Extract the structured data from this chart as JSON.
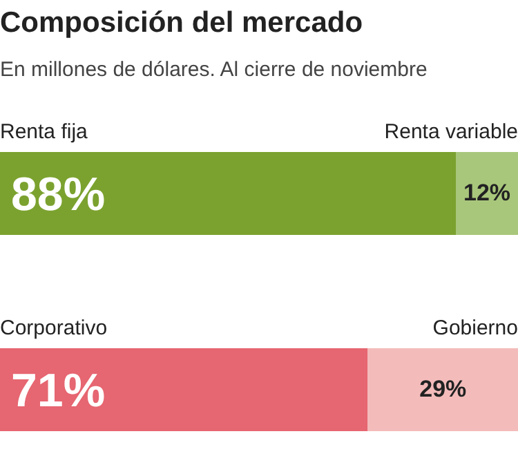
{
  "chart_data": [
    {
      "type": "bar",
      "title": "Composición del mercado",
      "subtitle": "En millones de dólares. Al cierre de noviembre",
      "orientation": "horizontal",
      "stacked": true,
      "categories": [
        null
      ],
      "series": [
        {
          "name": "Renta fija",
          "color": "#7ba22f",
          "values": [
            88
          ],
          "value_labels": [
            "88%"
          ]
        },
        {
          "name": "Renta variable",
          "color": "#a8c77b",
          "values": [
            12
          ],
          "value_labels": [
            "12%"
          ]
        }
      ]
    },
    {
      "type": "bar",
      "orientation": "horizontal",
      "stacked": true,
      "categories": [
        null
      ],
      "series": [
        {
          "name": "Corporativo",
          "color": "#e66671",
          "values": [
            71
          ],
          "value_labels": [
            "71%"
          ]
        },
        {
          "name": "Gobierno",
          "color": "#f3bcbb",
          "values": [
            29
          ],
          "value_labels": [
            "29%"
          ]
        }
      ]
    }
  ]
}
